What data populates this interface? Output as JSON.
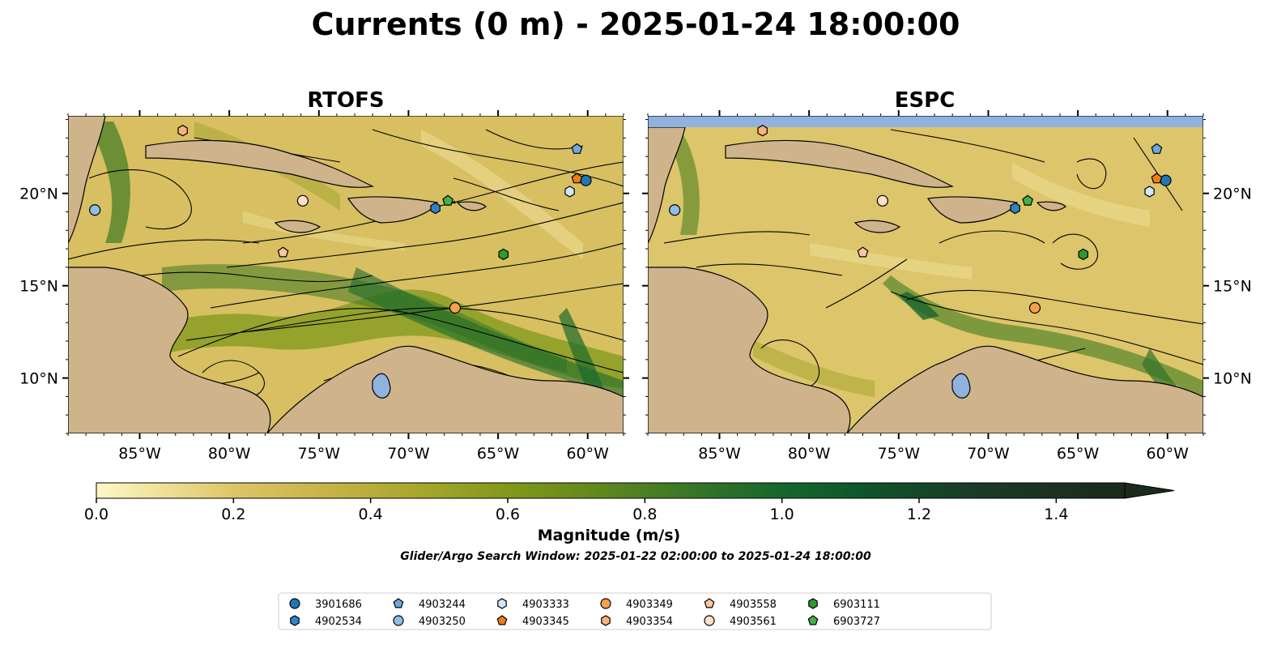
{
  "title": "Currents (0 m) - 2025-01-24 18:00:00",
  "panels": [
    {
      "name": "RTOFS"
    },
    {
      "name": "ESPC"
    }
  ],
  "map_extent": {
    "lon": [
      -89,
      -58
    ],
    "lat": [
      7,
      24.2
    ]
  },
  "lat_ticks": [
    {
      "value": 20,
      "label": "20°N"
    },
    {
      "value": 15,
      "label": "15°N"
    },
    {
      "value": 10,
      "label": "10°N"
    }
  ],
  "lon_ticks": [
    {
      "value": -85,
      "label": "85°W"
    },
    {
      "value": -80,
      "label": "80°W"
    },
    {
      "value": -75,
      "label": "75°W"
    },
    {
      "value": -70,
      "label": "70°W"
    },
    {
      "value": -65,
      "label": "65°W"
    },
    {
      "value": -60,
      "label": "60°W"
    }
  ],
  "colorbar": {
    "label": "Magnitude (m/s)",
    "range": [
      0.0,
      1.5
    ],
    "extend": "max",
    "ticks": [
      "0.0",
      "0.2",
      "0.4",
      "0.6",
      "0.8",
      "1.0",
      "1.2",
      "1.4"
    ],
    "colors": [
      "#fdf8c6",
      "#eedf95",
      "#ddc666",
      "#cdb74e",
      "#b8ad3a",
      "#9fa329",
      "#82981a",
      "#6a8b1c",
      "#4d7f22",
      "#2f7228",
      "#17662d",
      "#0f582b",
      "#15472a",
      "#1b3924",
      "#1b2a1b"
    ]
  },
  "search_window": "Glider/Argo Search Window: 2025-01-22 02:00:00 to 2025-01-24 18:00:00",
  "floats": [
    {
      "id": "3901686",
      "marker": "circle",
      "color": "#1f77b4",
      "lon": -60.1,
      "lat": 20.7
    },
    {
      "id": "4902534",
      "marker": "hexagon",
      "color": "#2f83c5",
      "lon": -68.5,
      "lat": 19.2
    },
    {
      "id": "4903244",
      "marker": "pentagon",
      "color": "#6fa8dc",
      "lon": -60.6,
      "lat": 22.4
    },
    {
      "id": "4903250",
      "marker": "circle",
      "color": "#8cbfe6",
      "lon": -87.5,
      "lat": 19.1
    },
    {
      "id": "4903333",
      "marker": "hexagon",
      "color": "#cfe7f6",
      "lon": -61.0,
      "lat": 20.1
    },
    {
      "id": "4903345",
      "marker": "pentagon",
      "color": "#f07c16",
      "lon": -60.6,
      "lat": 20.8
    },
    {
      "id": "4903349",
      "marker": "circle",
      "color": "#f5a04d",
      "lon": -67.4,
      "lat": 13.8
    },
    {
      "id": "4903354",
      "marker": "hexagon",
      "color": "#f8b377",
      "lon": -82.6,
      "lat": 23.4
    },
    {
      "id": "4903558",
      "marker": "pentagon",
      "color": "#f9c79e",
      "lon": -77.0,
      "lat": 16.8
    },
    {
      "id": "4903561",
      "marker": "circle",
      "color": "#fde0c7",
      "lon": -75.9,
      "lat": 19.6
    },
    {
      "id": "6903111",
      "marker": "hexagon",
      "color": "#2e9a2e",
      "lon": -64.7,
      "lat": 16.7
    },
    {
      "id": "6903727",
      "marker": "pentagon",
      "color": "#46b046",
      "lon": -67.8,
      "lat": 19.6
    }
  ]
}
